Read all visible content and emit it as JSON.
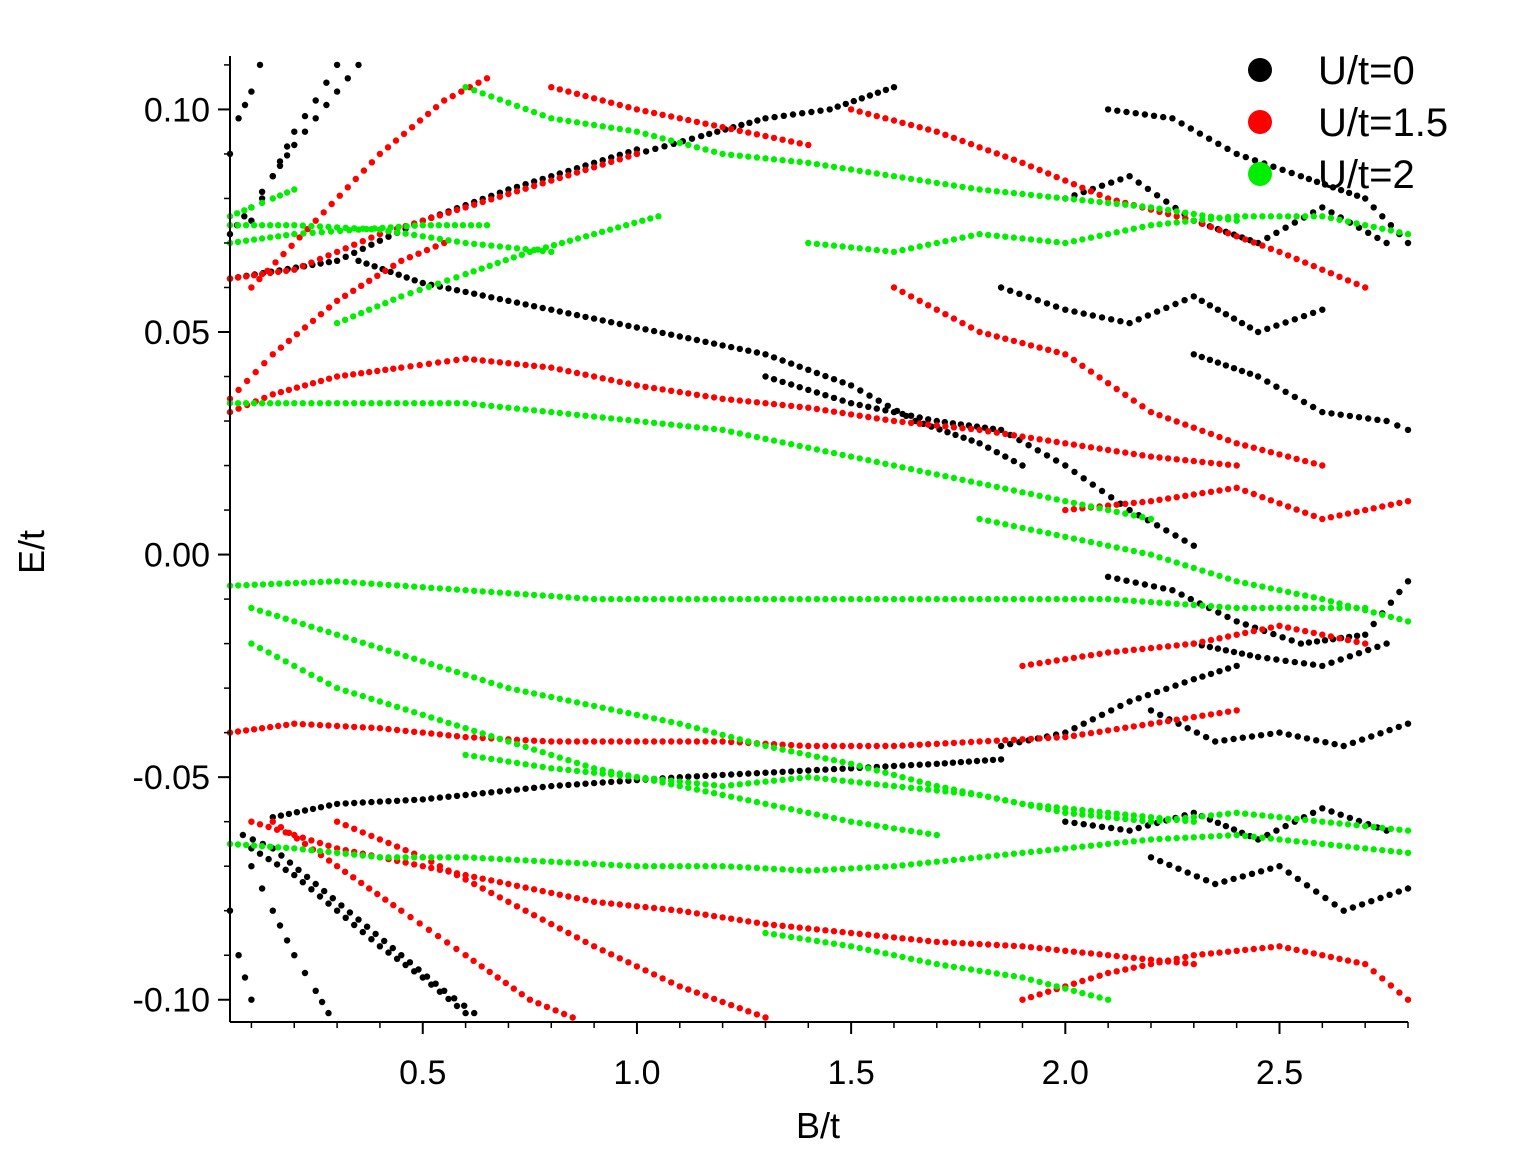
{
  "chart_data": {
    "type": "scatter",
    "xlabel": "B/t",
    "ylabel": "E/t",
    "xlim": [
      0.05,
      2.8
    ],
    "ylim": [
      -0.105,
      0.112
    ],
    "x_ticks": [
      0.5,
      1.0,
      1.5,
      2.0,
      2.5
    ],
    "x_tick_labels": [
      "0.5",
      "1.0",
      "1.5",
      "2.0",
      "2.5"
    ],
    "y_ticks": [
      0.1,
      0.05,
      0.0,
      -0.05,
      -0.1
    ],
    "y_tick_labels": [
      "0.10",
      "0.05",
      "0.00",
      "-0.05",
      "-0.10"
    ],
    "grid": false,
    "legend_position": "top-right",
    "series": [
      {
        "name": "U/t=0",
        "color": "#000000",
        "curves": [
          {
            "x": [
              0.05,
              0.3,
              0.5,
              0.7,
              0.9,
              1.0
            ],
            "y": [
              0.062,
              0.066,
              0.075,
              0.082,
              0.088,
              0.091
            ]
          },
          {
            "x": [
              0.35,
              0.5,
              0.8,
              1.1,
              1.3,
              1.5,
              1.65,
              1.8,
              1.9
            ],
            "y": [
              0.066,
              0.061,
              0.055,
              0.049,
              0.045,
              0.038,
              0.03,
              0.025,
              0.02
            ]
          },
          {
            "x": [
              0.15,
              0.3,
              0.5,
              0.8,
              1.1,
              1.3,
              1.5,
              1.7,
              1.85
            ],
            "y": [
              -0.059,
              -0.056,
              -0.055,
              -0.052,
              -0.05,
              -0.049,
              -0.048,
              -0.047,
              -0.046
            ]
          },
          {
            "x": [
              1.85,
              2.0,
              2.15,
              2.3,
              2.4
            ],
            "y": [
              -0.043,
              -0.04,
              -0.033,
              -0.028,
              -0.025
            ]
          },
          {
            "x": [
              0.08,
              0.15,
              0.25,
              0.35,
              0.45,
              0.55,
              0.62
            ],
            "y": [
              -0.063,
              -0.066,
              -0.074,
              -0.082,
              -0.09,
              -0.098,
              -0.103
            ]
          },
          {
            "x": [
              0.1,
              0.2,
              0.3,
              0.4,
              0.5,
              0.6
            ],
            "y": [
              -0.066,
              -0.072,
              -0.08,
              -0.088,
              -0.095,
              -0.103
            ]
          },
          {
            "x": [
              0.1,
              0.15,
              0.2,
              0.25,
              0.28
            ],
            "y": [
              -0.07,
              -0.08,
              -0.09,
              -0.098,
              -0.103
            ]
          },
          {
            "x": [
              0.05,
              0.1,
              0.15,
              0.2,
              0.25,
              0.3,
              0.35
            ],
            "y": [
              0.072,
              0.078,
              0.085,
              0.092,
              0.098,
              0.104,
              0.11
            ]
          },
          {
            "x": [
              0.1,
              0.15,
              0.2,
              0.25,
              0.3
            ],
            "y": [
              0.075,
              0.085,
              0.095,
              0.102,
              0.11
            ]
          },
          {
            "x": [
              0.05,
              0.07,
              0.1,
              0.12
            ],
            "y": [
              0.09,
              0.098,
              0.104,
              0.11
            ]
          },
          {
            "x": [
              0.05,
              0.07,
              0.1
            ],
            "y": [
              -0.08,
              -0.09,
              -0.1
            ]
          },
          {
            "x": [
              1.0,
              1.15,
              1.3,
              1.45,
              1.6
            ],
            "y": [
              0.09,
              0.094,
              0.098,
              0.1,
              0.105
            ]
          },
          {
            "x": [
              1.3,
              1.5,
              1.7,
              1.85,
              2.0,
              2.15,
              2.3
            ],
            "y": [
              0.04,
              0.034,
              0.03,
              0.028,
              0.02,
              0.01,
              0.002
            ]
          },
          {
            "x": [
              2.1,
              2.25,
              2.4,
              2.55,
              2.7,
              2.8
            ],
            "y": [
              -0.005,
              -0.008,
              -0.015,
              -0.02,
              -0.018,
              -0.006
            ]
          },
          {
            "x": [
              2.3,
              2.45,
              2.6,
              2.75
            ],
            "y": [
              -0.02,
              -0.023,
              -0.025,
              -0.02
            ]
          },
          {
            "x": [
              2.0,
              2.15,
              2.3,
              2.45,
              2.6,
              2.75
            ],
            "y": [
              -0.06,
              -0.062,
              -0.058,
              -0.064,
              -0.057,
              -0.062
            ]
          },
          {
            "x": [
              2.2,
              2.35,
              2.5,
              2.65,
              2.8
            ],
            "y": [
              -0.068,
              -0.074,
              -0.07,
              -0.08,
              -0.075
            ]
          },
          {
            "x": [
              1.85,
              2.0,
              2.15,
              2.3,
              2.45,
              2.6
            ],
            "y": [
              0.06,
              0.055,
              0.052,
              0.058,
              0.05,
              0.055
            ]
          },
          {
            "x": [
              2.0,
              2.15,
              2.3,
              2.45,
              2.6,
              2.75
            ],
            "y": [
              0.08,
              0.085,
              0.075,
              0.07,
              0.078,
              0.07
            ]
          },
          {
            "x": [
              2.1,
              2.25,
              2.4,
              2.55,
              2.7,
              2.8
            ],
            "y": [
              0.1,
              0.098,
              0.09,
              0.085,
              0.08,
              0.07
            ]
          },
          {
            "x": [
              2.3,
              2.45,
              2.6,
              2.75,
              2.8
            ],
            "y": [
              0.045,
              0.04,
              0.032,
              0.03,
              0.028
            ]
          },
          {
            "x": [
              2.2,
              2.35,
              2.5,
              2.65,
              2.8
            ],
            "y": [
              -0.035,
              -0.042,
              -0.04,
              -0.043,
              -0.038
            ]
          }
        ]
      },
      {
        "name": "U/t=1.5",
        "color": "#ff0000",
        "curves": [
          {
            "x": [
              0.05,
              0.2,
              0.4,
              0.6,
              0.8,
              1.0
            ],
            "y": [
              0.062,
              0.064,
              0.072,
              0.078,
              0.084,
              0.09
            ]
          },
          {
            "x": [
              0.05,
              0.15,
              0.3,
              0.45,
              0.6
            ],
            "y": [
              0.032,
              0.036,
              0.04,
              0.042,
              0.044
            ]
          },
          {
            "x": [
              0.6,
              0.8,
              1.0,
              1.2,
              1.4,
              1.6,
              1.8,
              2.0,
              2.2,
              2.4
            ],
            "y": [
              0.044,
              0.042,
              0.038,
              0.035,
              0.033,
              0.03,
              0.028,
              0.025,
              0.022,
              0.02
            ]
          },
          {
            "x": [
              0.05,
              0.15,
              0.3,
              0.45,
              0.55
            ],
            "y": [
              0.035,
              0.045,
              0.057,
              0.066,
              0.07
            ]
          },
          {
            "x": [
              0.1,
              0.25,
              0.4,
              0.55,
              0.65
            ],
            "y": [
              0.06,
              0.075,
              0.09,
              0.102,
              0.107
            ]
          },
          {
            "x": [
              0.05,
              0.2,
              0.4,
              0.6,
              0.8,
              1.0,
              1.2,
              1.4,
              1.6,
              1.8,
              2.0,
              2.2,
              2.4
            ],
            "y": [
              -0.04,
              -0.038,
              -0.039,
              -0.041,
              -0.042,
              -0.042,
              -0.042,
              -0.043,
              -0.043,
              -0.042,
              -0.041,
              -0.038,
              -0.035
            ]
          },
          {
            "x": [
              0.1,
              0.3,
              0.5,
              0.7,
              0.9,
              1.1,
              1.3,
              1.5,
              1.7,
              1.9,
              2.1,
              2.3
            ],
            "y": [
              -0.06,
              -0.066,
              -0.07,
              -0.074,
              -0.078,
              -0.08,
              -0.083,
              -0.085,
              -0.087,
              -0.088,
              -0.09,
              -0.092
            ]
          },
          {
            "x": [
              0.15,
              0.3,
              0.45,
              0.6,
              0.75,
              0.85
            ],
            "y": [
              -0.06,
              -0.07,
              -0.08,
              -0.09,
              -0.1,
              -0.104
            ]
          },
          {
            "x": [
              0.3,
              0.5,
              0.7,
              0.9,
              1.1,
              1.3
            ],
            "y": [
              -0.06,
              -0.068,
              -0.078,
              -0.088,
              -0.097,
              -0.104
            ]
          },
          {
            "x": [
              1.9,
              2.1,
              2.3,
              2.5,
              2.7,
              2.8
            ],
            "y": [
              -0.1,
              -0.094,
              -0.09,
              -0.088,
              -0.092,
              -0.1
            ]
          },
          {
            "x": [
              1.5,
              1.7,
              1.9,
              2.1,
              2.3,
              2.5,
              2.7
            ],
            "y": [
              0.1,
              0.095,
              0.088,
              0.08,
              0.075,
              0.068,
              0.06
            ]
          },
          {
            "x": [
              1.6,
              1.8,
              2.0,
              2.2,
              2.4,
              2.6
            ],
            "y": [
              0.06,
              0.05,
              0.045,
              0.032,
              0.025,
              0.02
            ]
          },
          {
            "x": [
              1.9,
              2.1,
              2.3,
              2.5,
              2.7
            ],
            "y": [
              -0.025,
              -0.022,
              -0.02,
              -0.016,
              -0.02
            ]
          },
          {
            "x": [
              2.0,
              2.2,
              2.4,
              2.6,
              2.8
            ],
            "y": [
              0.01,
              0.012,
              0.015,
              0.008,
              0.012
            ]
          },
          {
            "x": [
              0.8,
              1.0,
              1.2,
              1.4
            ],
            "y": [
              0.105,
              0.1,
              0.096,
              0.092
            ]
          }
        ]
      },
      {
        "name": "U/t=2",
        "color": "#00ee00",
        "curves": [
          {
            "x": [
              0.05,
              0.2,
              0.4,
              0.6,
              0.8
            ],
            "y": [
              0.074,
              0.074,
              0.073,
              0.07,
              0.068
            ]
          },
          {
            "x": [
              0.05,
              0.2,
              0.35,
              0.5,
              0.65
            ],
            "y": [
              0.07,
              0.072,
              0.073,
              0.074,
              0.074
            ]
          },
          {
            "x": [
              0.3,
              0.45,
              0.6,
              0.75,
              0.9,
              1.05
            ],
            "y": [
              0.052,
              0.058,
              0.063,
              0.068,
              0.072,
              0.076
            ]
          },
          {
            "x": [
              0.05,
              0.2,
              0.4,
              0.6,
              0.8,
              1.0,
              1.2,
              1.4,
              1.6,
              1.8,
              2.0,
              2.2
            ],
            "y": [
              0.034,
              0.034,
              0.034,
              0.034,
              0.032,
              0.03,
              0.028,
              0.024,
              0.02,
              0.016,
              0.012,
              0.008
            ]
          },
          {
            "x": [
              0.05,
              0.3,
              0.6,
              0.9,
              1.2,
              1.5,
              1.8,
              2.1,
              2.4,
              2.7
            ],
            "y": [
              -0.007,
              -0.006,
              -0.008,
              -0.01,
              -0.01,
              -0.01,
              -0.01,
              -0.01,
              -0.012,
              -0.012
            ]
          },
          {
            "x": [
              0.1,
              0.3,
              0.5,
              0.7,
              0.9,
              1.1,
              1.3,
              1.5,
              1.7,
              1.9,
              2.1,
              2.3
            ],
            "y": [
              -0.012,
              -0.018,
              -0.024,
              -0.03,
              -0.034,
              -0.038,
              -0.043,
              -0.047,
              -0.052,
              -0.056,
              -0.058,
              -0.06
            ]
          },
          {
            "x": [
              0.1,
              0.3,
              0.5,
              0.7,
              0.9,
              1.1,
              1.3,
              1.5,
              1.7
            ],
            "y": [
              -0.02,
              -0.03,
              -0.036,
              -0.042,
              -0.048,
              -0.052,
              -0.056,
              -0.06,
              -0.063
            ]
          },
          {
            "x": [
              0.05,
              0.2,
              0.4,
              0.6,
              0.8,
              1.0,
              1.2,
              1.4,
              1.6,
              1.8,
              2.0,
              2.2,
              2.4,
              2.6,
              2.8
            ],
            "y": [
              -0.065,
              -0.066,
              -0.068,
              -0.068,
              -0.069,
              -0.07,
              -0.07,
              -0.071,
              -0.07,
              -0.068,
              -0.066,
              -0.064,
              -0.063,
              -0.065,
              -0.067
            ]
          },
          {
            "x": [
              0.6,
              0.8,
              1.0,
              1.2,
              1.4,
              1.6,
              1.8,
              2.0,
              2.2,
              2.4,
              2.6,
              2.8
            ],
            "y": [
              -0.045,
              -0.048,
              -0.05,
              -0.052,
              -0.05,
              -0.052,
              -0.054,
              -0.058,
              -0.06,
              -0.058,
              -0.06,
              -0.062
            ]
          },
          {
            "x": [
              0.6,
              0.8,
              1.0,
              1.2,
              1.4,
              1.6,
              1.8,
              2.0,
              2.2,
              2.4
            ],
            "y": [
              0.105,
              0.098,
              0.095,
              0.09,
              0.088,
              0.085,
              0.082,
              0.08,
              0.078,
              0.075
            ]
          },
          {
            "x": [
              1.4,
              1.6,
              1.8,
              2.0,
              2.2,
              2.4,
              2.6,
              2.8
            ],
            "y": [
              0.07,
              0.068,
              0.072,
              0.07,
              0.074,
              0.076,
              0.076,
              0.072
            ]
          },
          {
            "x": [
              1.8,
              2.0,
              2.2,
              2.4,
              2.6,
              2.8
            ],
            "y": [
              0.008,
              0.004,
              0.0,
              -0.006,
              -0.01,
              -0.015
            ]
          },
          {
            "x": [
              1.3,
              1.5,
              1.7,
              1.9,
              2.1
            ],
            "y": [
              -0.085,
              -0.088,
              -0.092,
              -0.095,
              -0.1
            ]
          },
          {
            "x": [
              0.05,
              0.1,
              0.15,
              0.2
            ],
            "y": [
              0.076,
              0.078,
              0.08,
              0.082
            ]
          }
        ]
      }
    ]
  }
}
